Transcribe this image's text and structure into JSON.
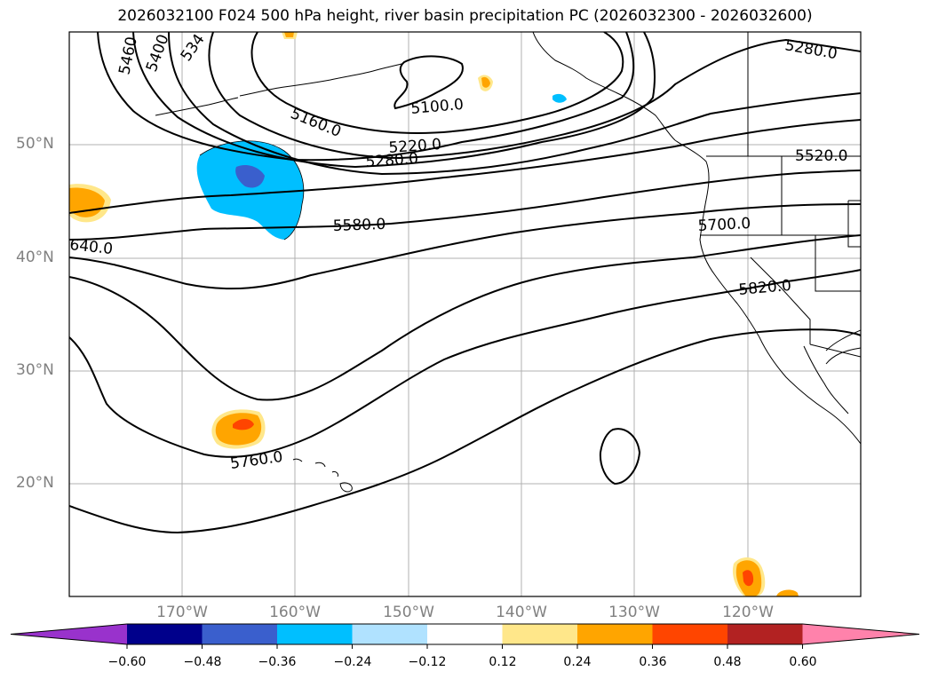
{
  "title": "2026032100 F024 500 hPa height, river basin precipitation PC (2026032300 - 2026032600)",
  "lat_labels": [
    "50°N",
    "40°N",
    "30°N",
    "20°N"
  ],
  "lon_labels": [
    "170°W",
    "160°W",
    "150°W",
    "140°W",
    "130°W",
    "120°W"
  ],
  "contour_labels": {
    "c5460": "5460",
    "c5400": "5400",
    "c534": "534",
    "c5160": "5160.0",
    "c5100": "5100.0",
    "c5220": "5220.0",
    "c5280a": "5280.0",
    "c5280b": "5280.0",
    "c5520": "5520.0",
    "c5580": "5580.0",
    "c5700": "5700.0",
    "c640": "640.0",
    "c5820": "5820.0",
    "c5760": "5760.0"
  },
  "colorbar": {
    "ticks": [
      "−0.60",
      "−0.48",
      "−0.36",
      "−0.24",
      "−0.12",
      "0.12",
      "0.24",
      "0.36",
      "0.48",
      "0.60"
    ],
    "colors": [
      "#9932cc",
      "#00008b",
      "#3a5fcd",
      "#00bfff",
      "#b0e2ff",
      "#ffffff",
      "#ffe78a",
      "#ffa500",
      "#ff4500",
      "#b22222",
      "#ff82ab"
    ]
  }
}
